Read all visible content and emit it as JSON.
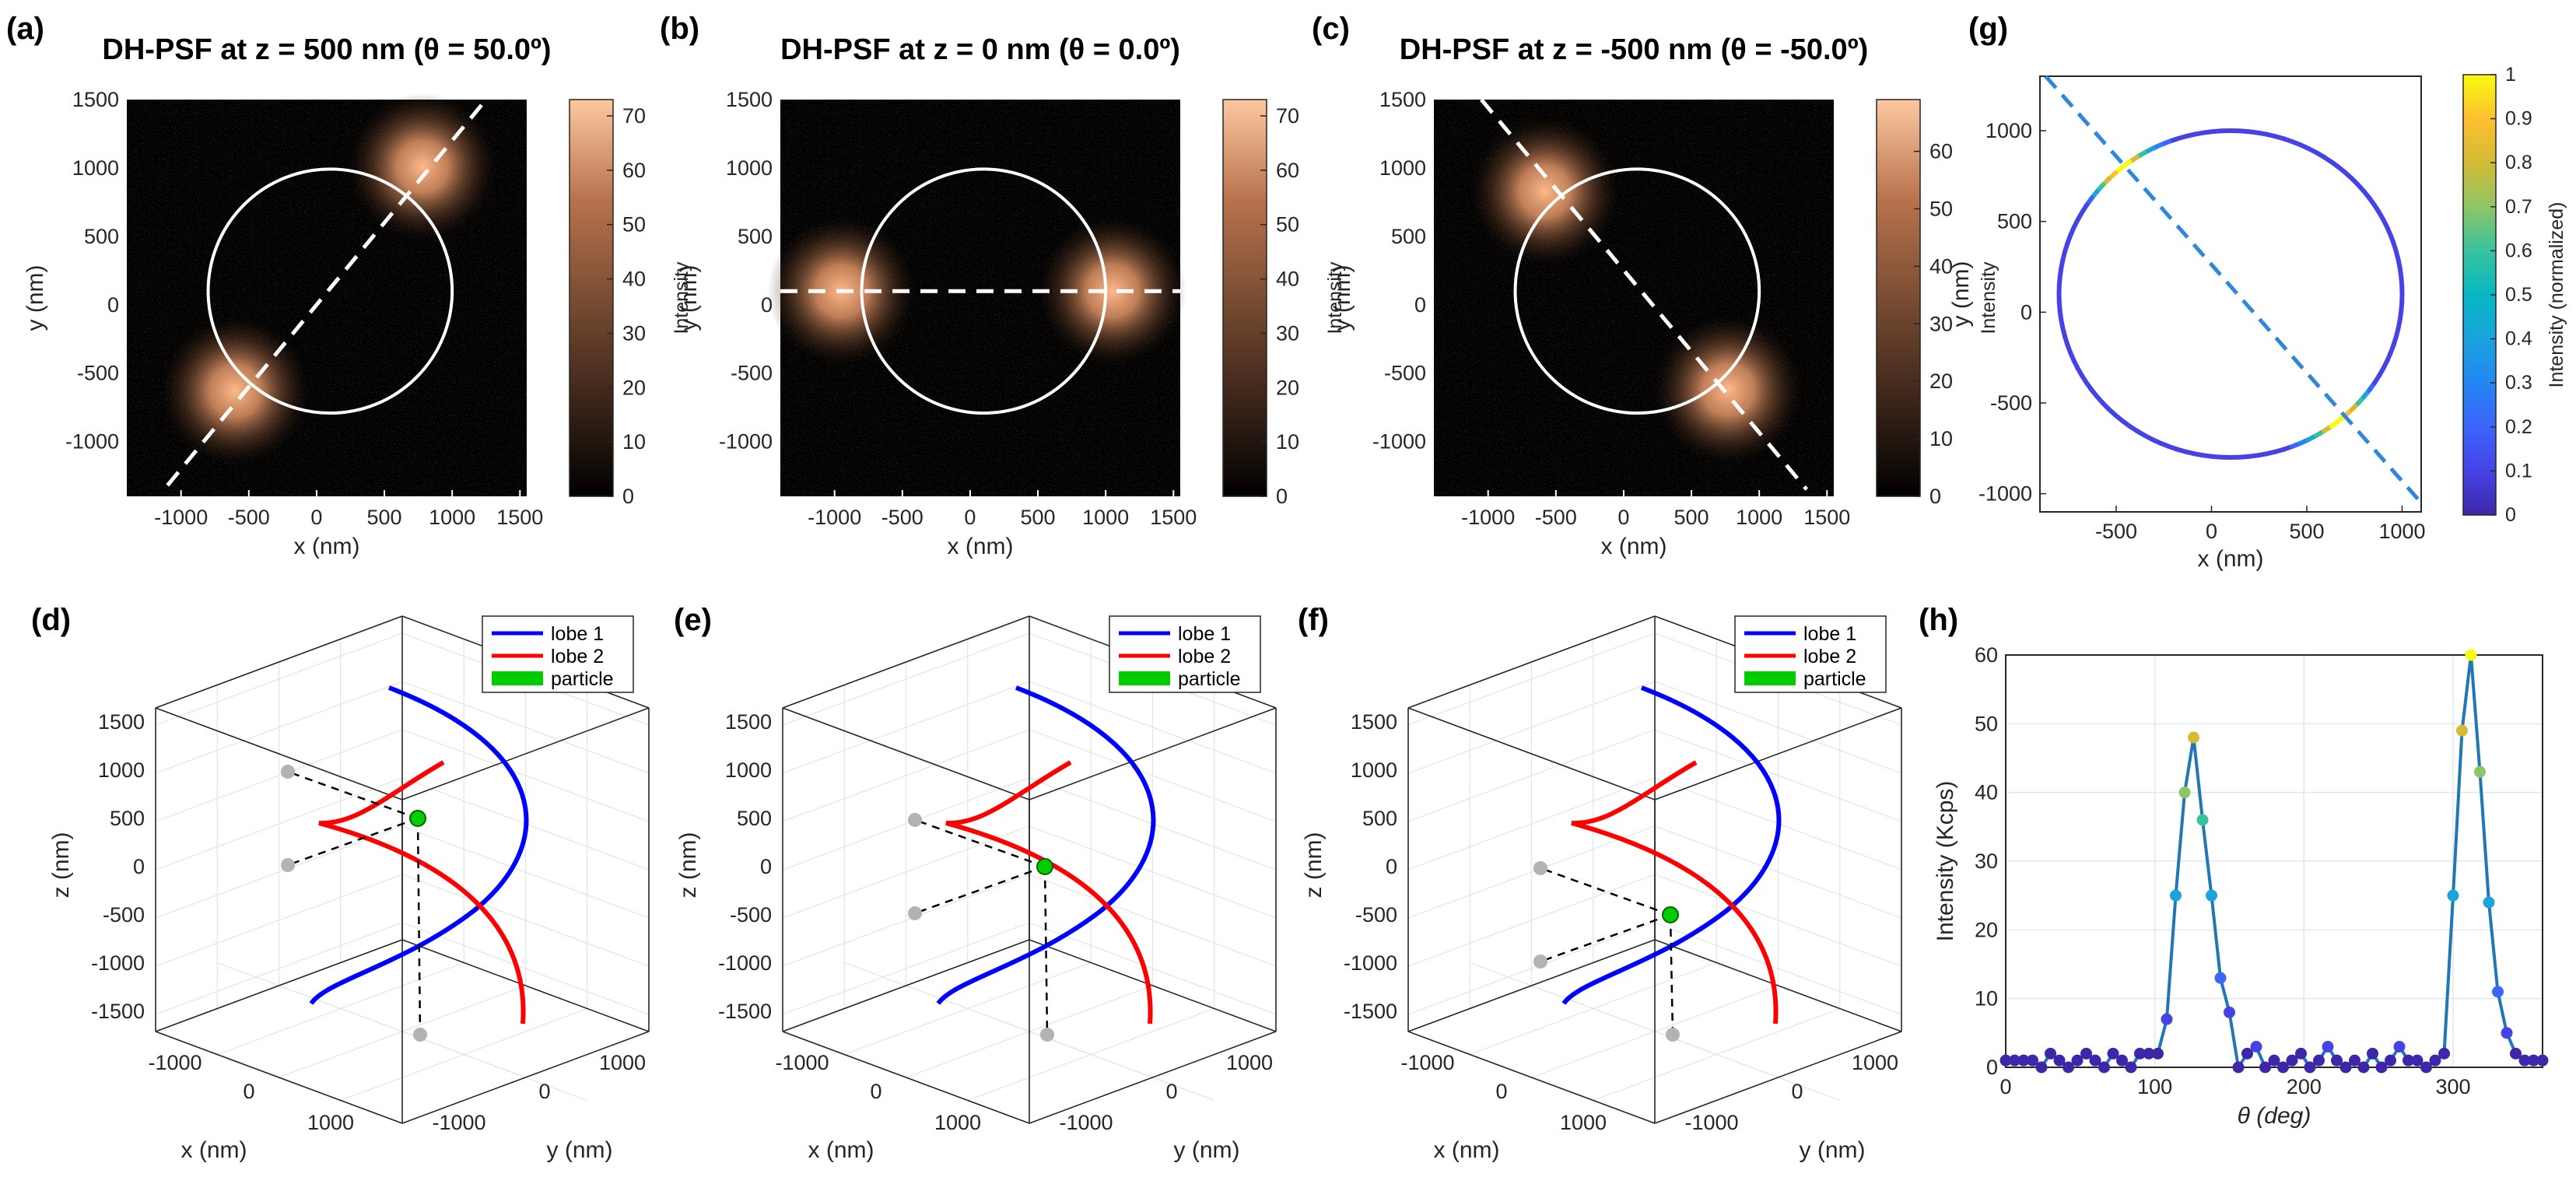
{
  "colors": {
    "lobe1": "#0000ff",
    "lobe2": "#ff0000",
    "particle": "#00cc00",
    "trace": "#1f77b4",
    "dashed_g": "#2e86de",
    "projection": "#b3b3b3"
  },
  "chart_data": [
    {
      "id": "a",
      "letter": "(a)",
      "type": "heatmap",
      "title": "DH-PSF at z = 500 nm (θ = 50.0º)",
      "xlabel": "x (nm)",
      "ylabel": "y (nm)",
      "xlim": [
        -1400,
        1550
      ],
      "ylim": [
        -1400,
        1500
      ],
      "xticks": [
        "-1000",
        "-500",
        "0",
        "500",
        "1000",
        "1500"
      ],
      "yticks": [
        "-1000",
        "-500",
        "0",
        "500",
        "1000",
        "1500"
      ],
      "colorbar": {
        "label": "Intensity",
        "ticks": [
          "0",
          "10",
          "20",
          "30",
          "40",
          "50",
          "60",
          "70"
        ],
        "max": 73
      },
      "circle": {
        "cx": 100,
        "cy": 100,
        "r": 900
      },
      "spots": [
        {
          "x": 780,
          "y": 1010
        },
        {
          "x": -600,
          "y": -630
        }
      ],
      "dashed_line": [
        [
          -1100,
          -1320
        ],
        [
          1250,
          1500
        ]
      ]
    },
    {
      "id": "b",
      "letter": "(b)",
      "type": "heatmap",
      "title": "DH-PSF at z = 0 nm (θ = 0.0º)",
      "xlabel": "x (nm)",
      "ylabel": "y (nm)",
      "xlim": [
        -1400,
        1550
      ],
      "ylim": [
        -1400,
        1500
      ],
      "xticks": [
        "-1000",
        "-500",
        "0",
        "500",
        "1000",
        "1500"
      ],
      "yticks": [
        "-1000",
        "-500",
        "0",
        "500",
        "1000",
        "1500"
      ],
      "colorbar": {
        "label": "Intensity",
        "ticks": [
          "0",
          "10",
          "20",
          "30",
          "40",
          "50",
          "60",
          "70"
        ],
        "max": 73
      },
      "circle": {
        "cx": 100,
        "cy": 100,
        "r": 900
      },
      "spots": [
        {
          "x": -950,
          "y": 100
        },
        {
          "x": 1050,
          "y": 100
        }
      ],
      "dashed_line": [
        [
          -1400,
          100
        ],
        [
          1550,
          100
        ]
      ]
    },
    {
      "id": "c",
      "letter": "(c)",
      "type": "heatmap",
      "title": "DH-PSF at z = -500 nm (θ = -50.0º)",
      "xlabel": "x (nm)",
      "ylabel": "y (nm)",
      "xlim": [
        -1400,
        1550
      ],
      "ylim": [
        -1400,
        1500
      ],
      "xticks": [
        "-1000",
        "-500",
        "0",
        "500",
        "1000",
        "1500"
      ],
      "yticks": [
        "-1000",
        "-500",
        "0",
        "500",
        "1000",
        "1500"
      ],
      "colorbar": {
        "label": "Intensity",
        "ticks": [
          "0",
          "10",
          "20",
          "30",
          "40",
          "50",
          "60"
        ],
        "max": 69
      },
      "circle": {
        "cx": 100,
        "cy": 100,
        "r": 900
      },
      "spots": [
        {
          "x": -580,
          "y": 830
        },
        {
          "x": 770,
          "y": -620
        }
      ],
      "dashed_line": [
        [
          -1050,
          1500
        ],
        [
          1350,
          -1350
        ]
      ]
    },
    {
      "id": "g",
      "letter": "(g)",
      "type": "line",
      "xlabel": "x (nm)",
      "ylabel": "y (nm)",
      "xlim": [
        -900,
        1100
      ],
      "ylim": [
        -1100,
        1300
      ],
      "xticks": [
        -500,
        0,
        500,
        1000
      ],
      "yticks": [
        -1000,
        -500,
        0,
        500,
        1000
      ],
      "circle": {
        "cx": 100,
        "cy": 100,
        "r": 900
      },
      "hot_angles_deg": [
        130,
        310
      ],
      "dashed_line": [
        [
          -870,
          1300
        ],
        [
          1100,
          -1050
        ]
      ],
      "colorbar": {
        "label": "Intensity (normalized)",
        "ticks": [
          "0",
          "0.1",
          "0.2",
          "0.3",
          "0.4",
          "0.5",
          "0.6",
          "0.7",
          "0.8",
          "0.9",
          "1"
        ]
      }
    },
    {
      "id": "d",
      "letter": "(d)",
      "type": "line3d",
      "particle": {
        "x": -250,
        "y": -250,
        "z": 500
      },
      "zticks": [
        "1500",
        "1000",
        "500",
        "0",
        "-500",
        "-1000",
        "-1500"
      ],
      "xticks": [
        "-1000",
        "0",
        "1000"
      ],
      "yticks": [
        "-1000",
        "0",
        "1000"
      ],
      "xlabel": "x (nm)",
      "ylabel": "y (nm)",
      "zlabel": "z (nm)",
      "legend": [
        "lobe 1",
        "lobe 2",
        "particle"
      ]
    },
    {
      "id": "e",
      "letter": "(e)",
      "type": "line3d",
      "particle": {
        "x": -250,
        "y": -250,
        "z": 0
      },
      "zticks": [
        "1500",
        "1000",
        "500",
        "0",
        "-500",
        "-1000",
        "-1500"
      ],
      "xticks": [
        "-1000",
        "0",
        "1000"
      ],
      "yticks": [
        "-1000",
        "0",
        "1000"
      ],
      "xlabel": "x (nm)",
      "ylabel": "y (nm)",
      "zlabel": "z (nm)",
      "legend": [
        "lobe 1",
        "lobe 2",
        "particle"
      ]
    },
    {
      "id": "f",
      "letter": "(f)",
      "type": "line3d",
      "particle": {
        "x": -250,
        "y": -250,
        "z": -500
      },
      "zticks": [
        "1500",
        "1000",
        "500",
        "0",
        "-500",
        "-1000",
        "-1500"
      ],
      "xticks": [
        "-1000",
        "0",
        "1000"
      ],
      "yticks": [
        "-1000",
        "0",
        "1000"
      ],
      "xlabel": "x (nm)",
      "ylabel": "y (nm)",
      "zlabel": "z (nm)",
      "legend": [
        "lobe 1",
        "lobe 2",
        "particle"
      ]
    },
    {
      "id": "h",
      "letter": "(h)",
      "type": "line",
      "xlabel": "θ  (deg)",
      "ylabel": "Intensity (Kcps)",
      "xlim": [
        0,
        360
      ],
      "ylim": [
        0,
        60
      ],
      "xticks": [
        0,
        100,
        200,
        300
      ],
      "yticks": [
        0,
        10,
        20,
        30,
        40,
        50,
        60
      ],
      "x": [
        0,
        6,
        12,
        18,
        24,
        30,
        36,
        42,
        48,
        54,
        60,
        66,
        72,
        78,
        84,
        90,
        96,
        102,
        108,
        114,
        120,
        126,
        132,
        138,
        144,
        150,
        156,
        162,
        168,
        174,
        180,
        186,
        192,
        198,
        204,
        210,
        216,
        222,
        228,
        234,
        240,
        246,
        252,
        258,
        264,
        270,
        276,
        282,
        288,
        294,
        300,
        306,
        312,
        318,
        324,
        330,
        336,
        342,
        348,
        354,
        360
      ],
      "y": [
        1,
        1,
        1,
        1,
        0,
        2,
        1,
        0,
        1,
        2,
        1,
        0,
        2,
        1,
        0,
        2,
        2,
        2,
        7,
        25,
        40,
        48,
        36,
        25,
        13,
        8,
        0,
        2,
        3,
        0,
        1,
        0,
        1,
        2,
        0,
        1,
        3,
        1,
        0,
        1,
        0,
        2,
        0,
        1,
        3,
        1,
        1,
        0,
        1,
        2,
        25,
        49,
        60,
        43,
        24,
        11,
        5,
        2,
        1,
        1,
        1
      ]
    }
  ]
}
